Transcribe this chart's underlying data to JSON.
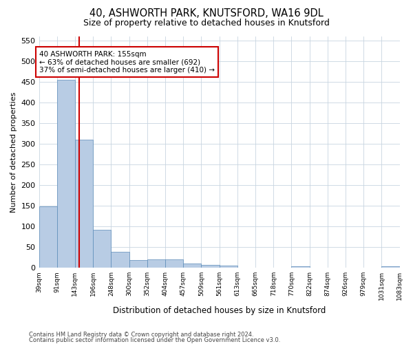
{
  "title": "40, ASHWORTH PARK, KNUTSFORD, WA16 9DL",
  "subtitle": "Size of property relative to detached houses in Knutsford",
  "xlabel": "Distribution of detached houses by size in Knutsford",
  "ylabel": "Number of detached properties",
  "bar_color": "#b8cce4",
  "bar_edge_color": "#5a8ab8",
  "background_color": "#ffffff",
  "grid_color": "#c8d4e0",
  "bin_edges": [
    39,
    91,
    143,
    196,
    248,
    300,
    352,
    404,
    457,
    509,
    561,
    613,
    665,
    718,
    770,
    822,
    874,
    926,
    979,
    1031,
    1083
  ],
  "bin_labels": [
    "39sqm",
    "91sqm",
    "143sqm",
    "196sqm",
    "248sqm",
    "300sqm",
    "352sqm",
    "404sqm",
    "457sqm",
    "509sqm",
    "561sqm",
    "613sqm",
    "665sqm",
    "718sqm",
    "770sqm",
    "822sqm",
    "874sqm",
    "926sqm",
    "979sqm",
    "1031sqm",
    "1083sqm"
  ],
  "bar_heights": [
    148,
    455,
    310,
    92,
    38,
    19,
    20,
    21,
    10,
    7,
    5,
    1,
    0,
    0,
    4,
    0,
    0,
    0,
    0,
    4
  ],
  "property_size": 155,
  "red_line_x": 155,
  "annotation_text": "40 ASHWORTH PARK: 155sqm\n← 63% of detached houses are smaller (692)\n37% of semi-detached houses are larger (410) →",
  "annotation_box_color": "#ffffff",
  "annotation_box_edge": "#cc0000",
  "red_line_color": "#cc0000",
  "ylim": [
    0,
    560
  ],
  "yticks": [
    0,
    50,
    100,
    150,
    200,
    250,
    300,
    350,
    400,
    450,
    500,
    550
  ],
  "footer_line1": "Contains HM Land Registry data © Crown copyright and database right 2024.",
  "footer_line2": "Contains public sector information licensed under the Open Government Licence v3.0."
}
